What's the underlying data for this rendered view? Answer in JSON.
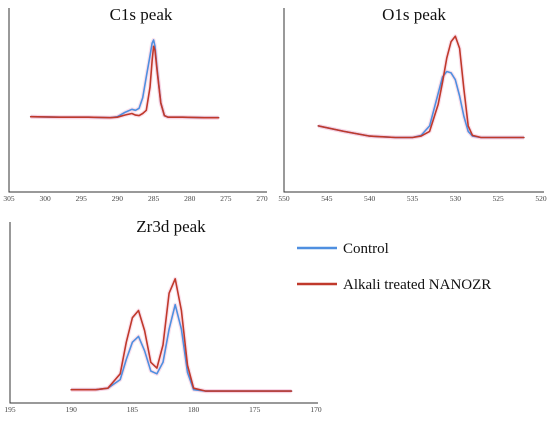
{
  "colors": {
    "control": "#4f8fe0",
    "treated": "#c0392b"
  },
  "legend": [
    {
      "key": "control",
      "label": "Control"
    },
    {
      "key": "treated",
      "label": "Alkali treated NANOZR"
    }
  ],
  "chart_data": [
    {
      "type": "line",
      "title": "C1s peak",
      "xlabel": "",
      "ylabel": "",
      "xlim": [
        305,
        270
      ],
      "ylim": [
        0,
        100
      ],
      "xticks": [
        305,
        300,
        295,
        290,
        285,
        280,
        275,
        270
      ],
      "series": [
        {
          "key": "control",
          "x": [
            302,
            298,
            294,
            291,
            290,
            289,
            288,
            287.5,
            287,
            286.5,
            286,
            285.5,
            285.2,
            285,
            284.8,
            284.5,
            284,
            283.5,
            283,
            281,
            278,
            276
          ],
          "y": [
            27,
            26.5,
            26.5,
            26,
            27,
            31,
            34,
            33,
            35,
            45,
            65,
            85,
            97,
            100,
            94,
            72,
            40,
            28,
            26.5,
            26.5,
            26,
            26
          ]
        },
        {
          "key": "treated",
          "x": [
            302,
            298,
            294,
            291,
            290,
            289,
            288,
            287.5,
            287,
            286.5,
            286,
            285.5,
            285.2,
            285,
            284.8,
            284.5,
            284,
            283.5,
            283,
            281,
            278,
            276
          ],
          "y": [
            27,
            26.5,
            26.5,
            26,
            26.5,
            28.5,
            30,
            28.5,
            28,
            30,
            33,
            55,
            80,
            94,
            90,
            70,
            40,
            28,
            26.5,
            26.5,
            26,
            26
          ]
        }
      ]
    },
    {
      "type": "line",
      "title": "O1s peak",
      "xlabel": "",
      "ylabel": "",
      "xlim": [
        550,
        520
      ],
      "ylim": [
        0,
        100
      ],
      "xticks": [
        550,
        545,
        540,
        535,
        530,
        525,
        520
      ],
      "series": [
        {
          "key": "control",
          "x": [
            546,
            543,
            540,
            537,
            535,
            534,
            533,
            532,
            531.5,
            531,
            530.5,
            530,
            529.5,
            529,
            528.5,
            528,
            527,
            525,
            523,
            522
          ],
          "y": [
            28,
            24,
            20.5,
            19.5,
            19.5,
            21,
            28,
            52,
            64,
            68,
            67,
            62,
            50,
            35,
            24,
            20.5,
            19.5,
            19.5,
            19.5,
            19.5
          ]
        },
        {
          "key": "treated",
          "x": [
            546,
            543,
            540,
            537,
            535,
            534,
            533,
            532,
            531.5,
            531,
            530.5,
            530,
            529.5,
            529,
            528.5,
            528,
            527,
            525,
            523,
            522
          ],
          "y": [
            28,
            24,
            20.5,
            19.5,
            19.5,
            20.5,
            24,
            44,
            60,
            78,
            90,
            94,
            85,
            55,
            28,
            21,
            19.5,
            19.5,
            19.5,
            19.5
          ]
        }
      ]
    },
    {
      "type": "line",
      "title": "Zr3d peak",
      "xlabel": "",
      "ylabel": "",
      "xlim": [
        195,
        170
      ],
      "ylim": [
        0,
        100
      ],
      "xticks": [
        195,
        190,
        185,
        180,
        175,
        170
      ],
      "series": [
        {
          "key": "control",
          "x": [
            190,
            188,
            187,
            186,
            185.5,
            185,
            184.5,
            184,
            183.5,
            183,
            182.5,
            182,
            181.5,
            181,
            180.5,
            180,
            179,
            175,
            172
          ],
          "y": [
            3,
            3,
            4,
            10,
            24,
            36,
            40,
            30,
            16,
            14,
            22,
            45,
            62,
            45,
            15,
            3,
            2,
            2,
            2
          ]
        },
        {
          "key": "treated",
          "x": [
            190,
            188,
            187,
            186,
            185.5,
            185,
            184.5,
            184,
            183.5,
            183,
            182.5,
            182,
            181.5,
            181,
            180.5,
            180,
            179,
            175,
            172
          ],
          "y": [
            3,
            3,
            4,
            14,
            36,
            53,
            58,
            44,
            22,
            18,
            34,
            70,
            80,
            58,
            20,
            4,
            2,
            2,
            2
          ]
        }
      ]
    }
  ]
}
